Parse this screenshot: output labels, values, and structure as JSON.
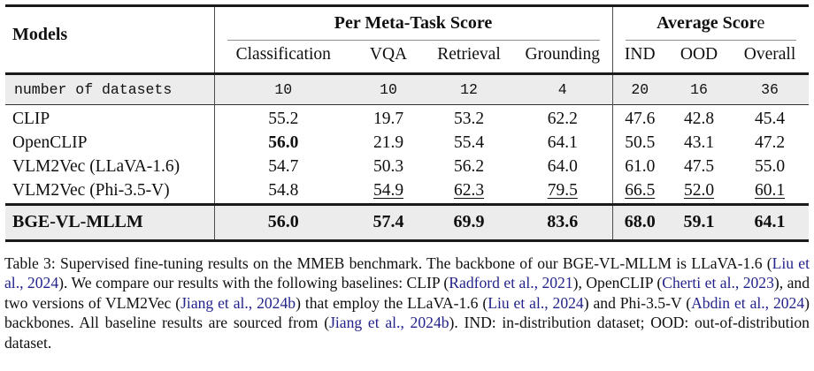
{
  "colors": {
    "citation_blue": "#23238C",
    "row_shade": "#ECECEC",
    "rule_dark": "#1A1A1A",
    "rule_gray": "#8F8F8F"
  },
  "table": {
    "header": {
      "models_label": "Models",
      "group1": "Per Meta-Task Score",
      "group2_bold": "Average Scor",
      "group2_tail": "e",
      "subcolumns": [
        "Classification",
        "VQA",
        "Retrieval",
        "Grounding",
        "IND",
        "OOD",
        "Overall"
      ]
    },
    "datasets_row": {
      "label": "number of datasets",
      "values": [
        "10",
        "10",
        "12",
        "4",
        "20",
        "16",
        "36"
      ]
    },
    "rows": [
      {
        "model": "CLIP",
        "cells": [
          {
            "v": "55.2"
          },
          {
            "v": "19.7"
          },
          {
            "v": "53.2"
          },
          {
            "v": "62.2"
          },
          {
            "v": "47.6"
          },
          {
            "v": "42.8"
          },
          {
            "v": "45.4"
          }
        ]
      },
      {
        "model": "OpenCLIP",
        "cells": [
          {
            "v": "56.0",
            "emph": "bold"
          },
          {
            "v": "21.9"
          },
          {
            "v": "55.4"
          },
          {
            "v": "64.1"
          },
          {
            "v": "50.5"
          },
          {
            "v": "43.1"
          },
          {
            "v": "47.2"
          }
        ]
      },
      {
        "model": "VLM2Vec (LLaVA-1.6)",
        "cells": [
          {
            "v": "54.7"
          },
          {
            "v": "50.3"
          },
          {
            "v": "56.2"
          },
          {
            "v": "64.0"
          },
          {
            "v": "61.0"
          },
          {
            "v": "47.5"
          },
          {
            "v": "55.0"
          }
        ]
      },
      {
        "model": "VLM2Vec (Phi-3.5-V)",
        "cells": [
          {
            "v": "54.8"
          },
          {
            "v": "54.9",
            "emph": "underline"
          },
          {
            "v": "62.3",
            "emph": "underline"
          },
          {
            "v": "79.5",
            "emph": "underline"
          },
          {
            "v": "66.5",
            "emph": "underline"
          },
          {
            "v": "52.0",
            "emph": "underline"
          },
          {
            "v": "60.1",
            "emph": "underline"
          }
        ]
      }
    ],
    "highlight_row": {
      "model": "BGE-VL-MLLM",
      "emph": "bold",
      "cells": [
        {
          "v": "56.0"
        },
        {
          "v": "57.4"
        },
        {
          "v": "69.9"
        },
        {
          "v": "83.6"
        },
        {
          "v": "68.0"
        },
        {
          "v": "59.1"
        },
        {
          "v": "64.1"
        }
      ]
    }
  },
  "caption": {
    "segments": [
      {
        "type": "text",
        "text": "Table 3:  Supervised fine-tuning results on the MMEB benchmark.  The backbone of our BGE-VL-MLLM is LLaVA-1.6 ("
      },
      {
        "type": "cite",
        "text": "Liu et al., 2024"
      },
      {
        "type": "text",
        "text": "). We compare our results with the following baselines: CLIP ("
      },
      {
        "type": "cite",
        "text": "Radford et al., 2021"
      },
      {
        "type": "text",
        "text": "), OpenCLIP ("
      },
      {
        "type": "cite",
        "text": "Cherti et al., 2023"
      },
      {
        "type": "text",
        "text": "), and two versions of VLM2Vec ("
      },
      {
        "type": "cite",
        "text": "Jiang et al., 2024b"
      },
      {
        "type": "text",
        "text": ") that employ the LLaVA-1.6 ("
      },
      {
        "type": "cite",
        "text": "Liu et al., 2024"
      },
      {
        "type": "text",
        "text": ") and Phi-3.5-V ("
      },
      {
        "type": "cite",
        "text": "Abdin et al., 2024"
      },
      {
        "type": "text",
        "text": ") backbones.  All baseline results are sourced from ("
      },
      {
        "type": "cite",
        "text": "Jiang et al., 2024b"
      },
      {
        "type": "text",
        "text": "). IND: in-distribution dataset; OOD: out-of-distribution dataset."
      }
    ]
  }
}
